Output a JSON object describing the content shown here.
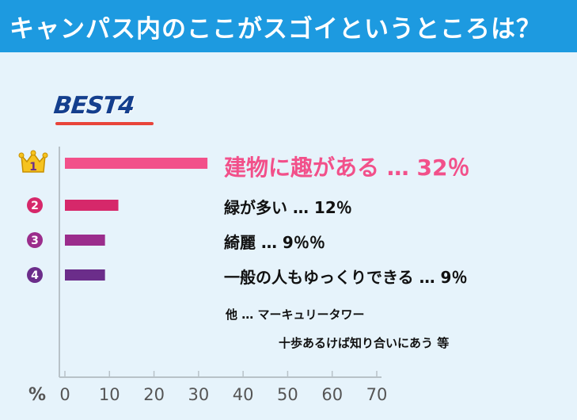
{
  "header": {
    "title": "キャンパス内のここがスゴイというところは？"
  },
  "badge": {
    "text": "BEST4"
  },
  "colors": {
    "header_bg": "#1d9ae0",
    "panel_bg": "#e6f3fb",
    "rank1": "#f2508a",
    "rank2": "#d6286a",
    "rank3": "#9b2d8c",
    "rank4": "#6b2d8a",
    "axis": "#b8c2c8"
  },
  "chart_data": {
    "type": "bar",
    "orientation": "horizontal",
    "unit_label": "%",
    "xlim": [
      0,
      70
    ],
    "ticks": [
      0,
      10,
      20,
      30,
      40,
      50,
      60,
      70
    ],
    "categories": [
      "建物に趣がある",
      "緑が多い",
      "綺麗",
      "一般の人もゆっくりできる"
    ],
    "values": [
      32,
      12,
      9,
      9
    ],
    "labels": [
      "建物に趣がある … 32％",
      "緑が多い … 12％",
      "綺麗 … 9％％",
      "一般の人もゆっくりできる … 9％"
    ],
    "ranks": [
      "1",
      "2",
      "3",
      "4"
    ]
  },
  "others": {
    "line1": "他 … マーキュリータワー",
    "line2": "十歩あるけば知り合いにあう 等"
  }
}
